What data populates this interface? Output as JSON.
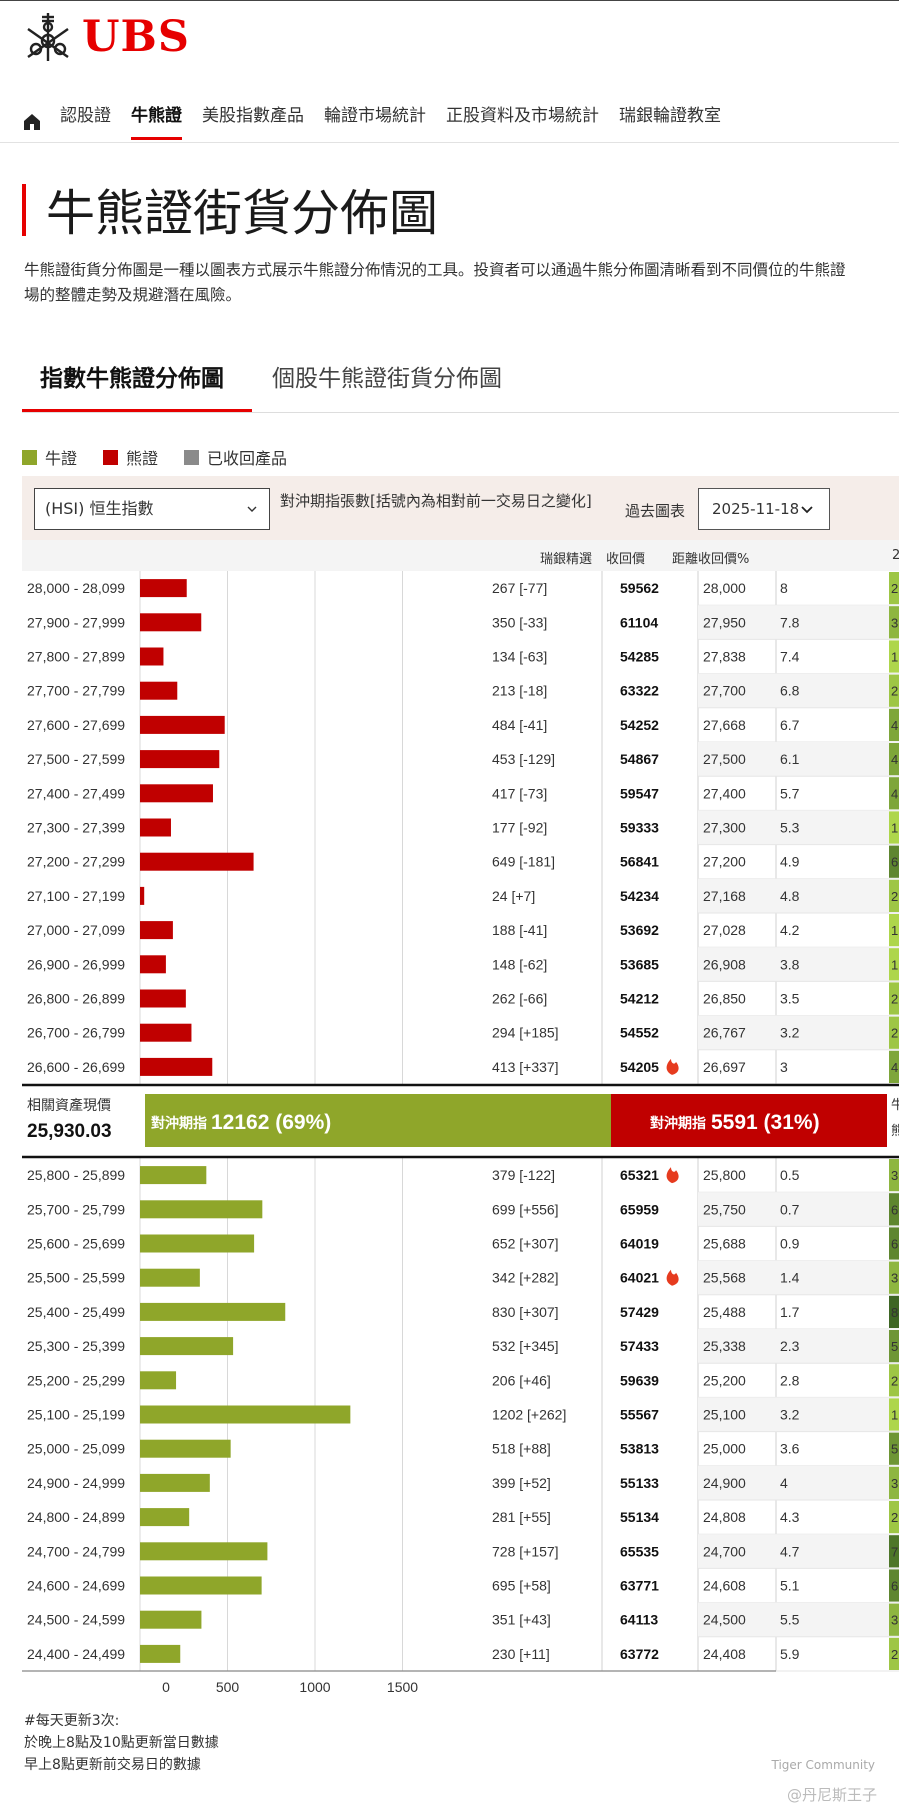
{
  "brand": {
    "name": "UBS",
    "color": "#e60000"
  },
  "nav": {
    "items": [
      "認股證",
      "牛熊證",
      "美股指數產品",
      "輪證市場統計",
      "正股資料及市場統計",
      "瑞銀輪證教室"
    ],
    "active_index": 1
  },
  "page": {
    "title": "牛熊證街貨分佈圖",
    "description_line1": "牛熊證街貨分佈圖是一種以圖表方式展示牛熊證分佈情況的工具。投資者可以通過牛熊分佈圖清晰看到不同價位的牛熊證",
    "description_line2": "場的整體走勢及規避潛在風險。"
  },
  "tabs": [
    {
      "label": "指數牛熊證分佈圖",
      "active": true
    },
    {
      "label": "個股牛熊證街貨分佈圖",
      "active": false
    }
  ],
  "legend": [
    {
      "label": "牛證",
      "color": "#8fa62a"
    },
    {
      "label": "熊證",
      "color": "#c00000"
    },
    {
      "label": "已收回產品",
      "color": "#8a8a8a"
    }
  ],
  "controls": {
    "index_select": "(HSI) 恒生指數",
    "hedge_label": "對沖期指張數[括號內為相對前一交易日之變化]",
    "past_chart_label": "過去圖表",
    "date": "2025-11-18"
  },
  "columns": {
    "pick": "瑞銀精選",
    "call_price": "收回價",
    "distance": "距離收回價%",
    "extra": "2"
  },
  "bear_rows": [
    {
      "range": "28,000 - 28,099",
      "value": 267,
      "change": "267 [-77]",
      "code": "59562",
      "hot": false,
      "call": "28,000",
      "dist": "8",
      "ex": "2"
    },
    {
      "range": "27,900 - 27,999",
      "value": 350,
      "change": "350 [-33]",
      "code": "61104",
      "hot": false,
      "call": "27,950",
      "dist": "7.8",
      "ex": "3"
    },
    {
      "range": "27,800 - 27,899",
      "value": 134,
      "change": "134 [-63]",
      "code": "54285",
      "hot": false,
      "call": "27,838",
      "dist": "7.4",
      "ex": "1"
    },
    {
      "range": "27,700 - 27,799",
      "value": 213,
      "change": "213 [-18]",
      "code": "63322",
      "hot": false,
      "call": "27,700",
      "dist": "6.8",
      "ex": "2"
    },
    {
      "range": "27,600 - 27,699",
      "value": 484,
      "change": "484 [-41]",
      "code": "54252",
      "hot": false,
      "call": "27,668",
      "dist": "6.7",
      "ex": "4"
    },
    {
      "range": "27,500 - 27,599",
      "value": 453,
      "change": "453 [-129]",
      "code": "54867",
      "hot": false,
      "call": "27,500",
      "dist": "6.1",
      "ex": "4"
    },
    {
      "range": "27,400 - 27,499",
      "value": 417,
      "change": "417 [-73]",
      "code": "59547",
      "hot": false,
      "call": "27,400",
      "dist": "5.7",
      "ex": "4"
    },
    {
      "range": "27,300 - 27,399",
      "value": 177,
      "change": "177 [-92]",
      "code": "59333",
      "hot": false,
      "call": "27,300",
      "dist": "5.3",
      "ex": "1"
    },
    {
      "range": "27,200 - 27,299",
      "value": 649,
      "change": "649 [-181]",
      "code": "56841",
      "hot": false,
      "call": "27,200",
      "dist": "4.9",
      "ex": "6"
    },
    {
      "range": "27,100 - 27,199",
      "value": 24,
      "change": "24 [+7]",
      "code": "54234",
      "hot": false,
      "call": "27,168",
      "dist": "4.8",
      "ex": "2"
    },
    {
      "range": "27,000 - 27,099",
      "value": 188,
      "change": "188 [-41]",
      "code": "53692",
      "hot": false,
      "call": "27,028",
      "dist": "4.2",
      "ex": "1"
    },
    {
      "range": "26,900 - 26,999",
      "value": 148,
      "change": "148 [-62]",
      "code": "53685",
      "hot": false,
      "call": "26,908",
      "dist": "3.8",
      "ex": "1"
    },
    {
      "range": "26,800 - 26,899",
      "value": 262,
      "change": "262 [-66]",
      "code": "54212",
      "hot": false,
      "call": "26,850",
      "dist": "3.5",
      "ex": "2"
    },
    {
      "range": "26,700 - 26,799",
      "value": 294,
      "change": "294 [+185]",
      "code": "54552",
      "hot": false,
      "call": "26,767",
      "dist": "3.2",
      "ex": "2"
    },
    {
      "range": "26,600 - 26,699",
      "value": 413,
      "change": "413 [+337]",
      "code": "54205",
      "hot": true,
      "call": "26,697",
      "dist": "3",
      "ex": "4"
    }
  ],
  "spot": {
    "label": "相關資產現價",
    "value": "25,930.03",
    "bull_label": "對沖期指",
    "bull_value": "12162 (69%)",
    "bull_share": 0.69,
    "bear_label": "對沖期指",
    "bear_value": "5591 (31%)",
    "bear_share": 0.31,
    "tail1": "牛",
    "tail2": "熊"
  },
  "bull_rows": [
    {
      "range": "25,800 - 25,899",
      "value": 379,
      "change": "379 [-122]",
      "code": "65321",
      "hot": true,
      "call": "25,800",
      "dist": "0.5",
      "ex": "3"
    },
    {
      "range": "25,700 - 25,799",
      "value": 699,
      "change": "699 [+556]",
      "code": "65959",
      "hot": false,
      "call": "25,750",
      "dist": "0.7",
      "ex": "6"
    },
    {
      "range": "25,600 - 25,699",
      "value": 652,
      "change": "652 [+307]",
      "code": "64019",
      "hot": false,
      "call": "25,688",
      "dist": "0.9",
      "ex": "6"
    },
    {
      "range": "25,500 - 25,599",
      "value": 342,
      "change": "342 [+282]",
      "code": "64021",
      "hot": true,
      "call": "25,568",
      "dist": "1.4",
      "ex": "3"
    },
    {
      "range": "25,400 - 25,499",
      "value": 830,
      "change": "830 [+307]",
      "code": "57429",
      "hot": false,
      "call": "25,488",
      "dist": "1.7",
      "ex": "8"
    },
    {
      "range": "25,300 - 25,399",
      "value": 532,
      "change": "532 [+345]",
      "code": "57433",
      "hot": false,
      "call": "25,338",
      "dist": "2.3",
      "ex": "5"
    },
    {
      "range": "25,200 - 25,299",
      "value": 206,
      "change": "206 [+46]",
      "code": "59639",
      "hot": false,
      "call": "25,200",
      "dist": "2.8",
      "ex": "2"
    },
    {
      "range": "25,100 - 25,199",
      "value": 1202,
      "change": "1202 [+262]",
      "code": "55567",
      "hot": false,
      "call": "25,100",
      "dist": "3.2",
      "ex": "1"
    },
    {
      "range": "25,000 - 25,099",
      "value": 518,
      "change": "518 [+88]",
      "code": "53813",
      "hot": false,
      "call": "25,000",
      "dist": "3.6",
      "ex": "5"
    },
    {
      "range": "24,900 - 24,999",
      "value": 399,
      "change": "399 [+52]",
      "code": "55133",
      "hot": false,
      "call": "24,900",
      "dist": "4",
      "ex": "3"
    },
    {
      "range": "24,800 - 24,899",
      "value": 281,
      "change": "281 [+55]",
      "code": "55134",
      "hot": false,
      "call": "24,808",
      "dist": "4.3",
      "ex": "2"
    },
    {
      "range": "24,700 - 24,799",
      "value": 728,
      "change": "728 [+157]",
      "code": "65535",
      "hot": false,
      "call": "24,700",
      "dist": "4.7",
      "ex": "7"
    },
    {
      "range": "24,600 - 24,699",
      "value": 695,
      "change": "695 [+58]",
      "code": "63771",
      "hot": false,
      "call": "24,608",
      "dist": "5.1",
      "ex": "6"
    },
    {
      "range": "24,500 - 24,599",
      "value": 351,
      "change": "351 [+43]",
      "code": "64113",
      "hot": false,
      "call": "24,500",
      "dist": "5.5",
      "ex": "3"
    },
    {
      "range": "24,400 - 24,499",
      "value": 230,
      "change": "230 [+11]",
      "code": "63772",
      "hot": false,
      "call": "24,408",
      "dist": "5.9",
      "ex": "2"
    }
  ],
  "chart_data": {
    "type": "bar",
    "orientation": "horizontal",
    "x_ticks": [
      "0",
      "500",
      "1000",
      "1500"
    ],
    "xlim": [
      0,
      1500
    ],
    "grid": true,
    "series": [
      {
        "name": "熊證",
        "color": "#c00000",
        "categories": [
          "28,000 - 28,099",
          "27,900 - 27,999",
          "27,800 - 27,899",
          "27,700 - 27,799",
          "27,600 - 27,699",
          "27,500 - 27,599",
          "27,400 - 27,499",
          "27,300 - 27,399",
          "27,200 - 27,299",
          "27,100 - 27,199",
          "27,000 - 27,099",
          "26,900 - 26,999",
          "26,800 - 26,899",
          "26,700 - 26,799",
          "26,600 - 26,699"
        ],
        "values": [
          267,
          350,
          134,
          213,
          484,
          453,
          417,
          177,
          649,
          24,
          188,
          148,
          262,
          294,
          413
        ]
      },
      {
        "name": "牛證",
        "color": "#8fa62a",
        "categories": [
          "25,800 - 25,899",
          "25,700 - 25,799",
          "25,600 - 25,699",
          "25,500 - 25,599",
          "25,400 - 25,499",
          "25,300 - 25,399",
          "25,200 - 25,299",
          "25,100 - 25,199",
          "25,000 - 25,099",
          "24,900 - 24,999",
          "24,800 - 24,899",
          "24,700 - 24,799",
          "24,600 - 24,699",
          "24,500 - 24,599",
          "24,400 - 24,499"
        ],
        "values": [
          379,
          699,
          652,
          342,
          830,
          532,
          206,
          1202,
          518,
          399,
          281,
          728,
          695,
          351,
          230
        ]
      }
    ]
  },
  "footer": {
    "line1": "#每天更新3次:",
    "line2": "於晚上8點及10點更新當日數據",
    "line3": "早上8點更新前交易日的數據"
  },
  "watermark": {
    "brand": "Tiger Community",
    "user": "@丹尼斯王子"
  }
}
